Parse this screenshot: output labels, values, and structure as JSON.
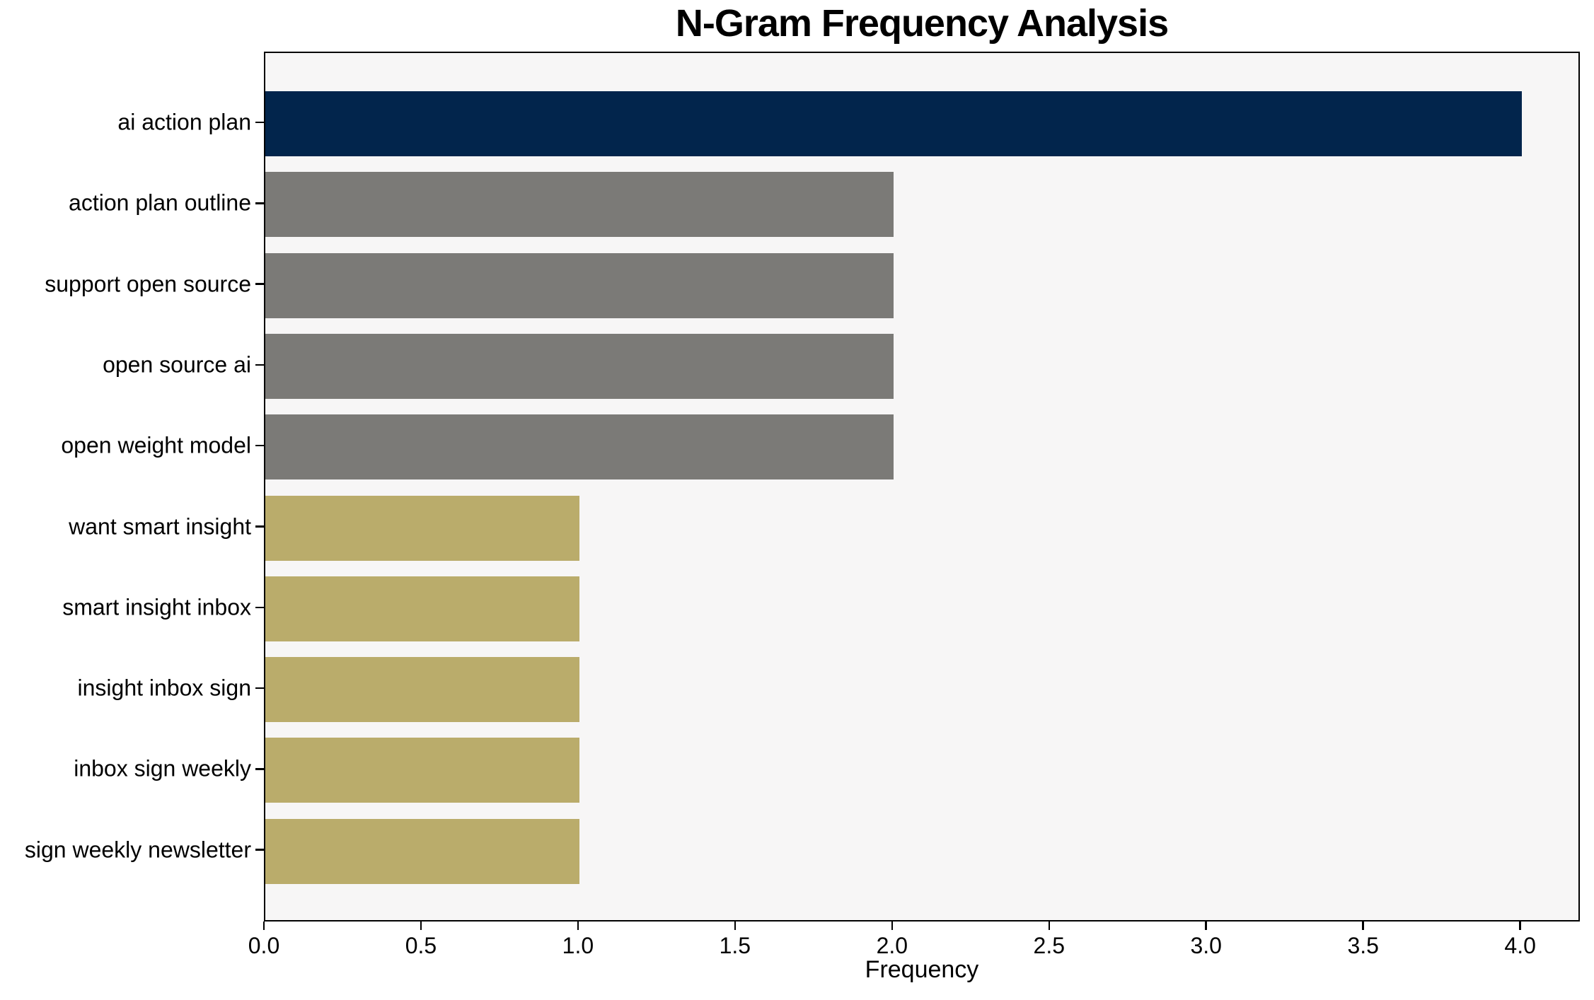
{
  "chart_data": {
    "type": "bar",
    "orientation": "horizontal",
    "title": "N-Gram Frequency Analysis",
    "xlabel": "Frequency",
    "ylabel": "",
    "categories": [
      "ai action plan",
      "action plan outline",
      "support open source",
      "open source ai",
      "open weight model",
      "want smart insight",
      "smart insight inbox",
      "insight inbox sign",
      "inbox sign weekly",
      "sign weekly newsletter"
    ],
    "values": [
      4,
      2,
      2,
      2,
      2,
      1,
      1,
      1,
      1,
      1
    ],
    "bar_colors": [
      "#02254C",
      "#7B7A77",
      "#7B7A77",
      "#7B7A77",
      "#7B7A77",
      "#BAAC6B",
      "#BAAC6B",
      "#BAAC6B",
      "#BAAC6B",
      "#BAAC6B"
    ],
    "x_ticks": [
      0.0,
      0.5,
      1.0,
      1.5,
      2.0,
      2.5,
      3.0,
      3.5,
      4.0
    ],
    "x_tick_labels": [
      "0.0",
      "0.5",
      "1.0",
      "1.5",
      "2.0",
      "2.5",
      "3.0",
      "3.5",
      "4.0"
    ],
    "xlim": [
      0,
      4.19
    ],
    "grid": false,
    "legend_position": "none",
    "plot_background": "#F7F6F6",
    "figure_background": "#FFFFFF",
    "spine_color": "#000000"
  }
}
